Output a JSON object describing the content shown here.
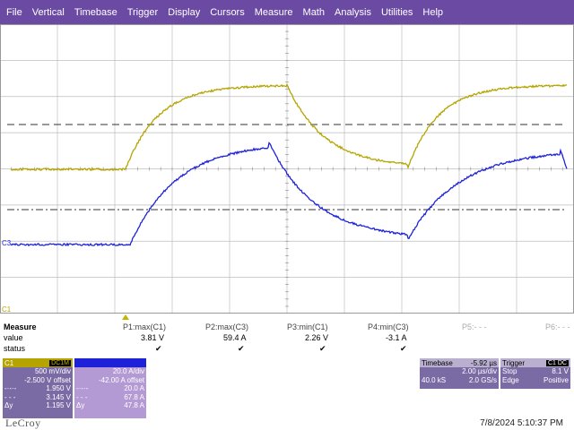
{
  "menu": [
    "File",
    "Vertical",
    "Timebase",
    "Trigger",
    "Display",
    "Cursors",
    "Measure",
    "Math",
    "Analysis",
    "Utilities",
    "Help"
  ],
  "trace_labels": {
    "c3": "C3",
    "c1": "C1"
  },
  "colors": {
    "menubar": "#6b4aa3",
    "c1_trace": "#b5a400",
    "c3_trace": "#1d22d8",
    "grid": "#bdbdbd"
  },
  "measure": {
    "title": "Measure",
    "row_value": "value",
    "row_status": "status",
    "params": [
      {
        "name": "P1:max(C1)",
        "value": "3.81 V",
        "status": "ok"
      },
      {
        "name": "P2:max(C3)",
        "value": "59.4 A",
        "status": "ok"
      },
      {
        "name": "P3:min(C1)",
        "value": "2.26 V",
        "status": "ok"
      },
      {
        "name": "P4:min(C3)",
        "value": "-3.1 A",
        "status": "ok"
      },
      {
        "name": "P5:- - -",
        "value": "",
        "status": ""
      },
      {
        "name": "P6:- - -",
        "value": "",
        "status": ""
      }
    ]
  },
  "c1": {
    "label": "C1",
    "badge": "DC1M",
    "vdiv": "500 mV/div",
    "offset": "-2.500 V offset",
    "cursor1": "1.950 V",
    "cursor2": "3.145 V",
    "dy_label": "Δy",
    "dy": "1.195 V"
  },
  "c3": {
    "label": "",
    "badge": "",
    "vdiv": "20.0 A/div",
    "offset": "-42.00 A offset",
    "cursor1": "20.0 A",
    "cursor2": "67.8 A",
    "dy_label": "Δy",
    "dy": "47.8 A"
  },
  "timebase": {
    "title": "Timebase",
    "delay": "-5.92 µs",
    "tdiv": "2.00 µs/div",
    "samples": "40.0 kS",
    "rate": "2.0 GS/s"
  },
  "trigger": {
    "title": "Trigger",
    "badge": "C1 DC",
    "mode": "Stop",
    "level": "8.1 V",
    "type": "Edge",
    "slope": "Positive"
  },
  "logo": "LeCroy",
  "clock": "7/8/2024 5:10:37 PM"
}
